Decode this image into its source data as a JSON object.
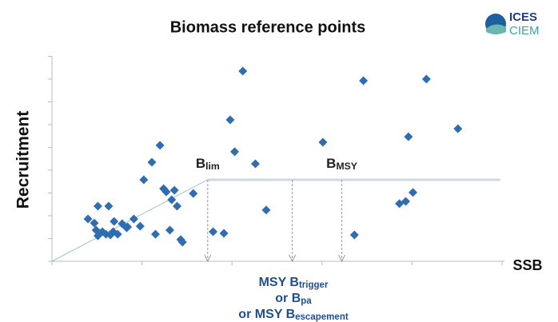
{
  "chart_data": {
    "type": "scatter",
    "title": "Biomass reference points",
    "y_label": "Recruitment",
    "x_label": "SSB",
    "logo": [
      "ICES",
      "CIEM"
    ],
    "color": "#2f6db0",
    "grid": false,
    "xlim": [
      0,
      5
    ],
    "ylim": [
      0,
      9
    ],
    "xticks": [
      0,
      1,
      2,
      3,
      4,
      5
    ],
    "yticks": [
      0,
      1,
      2,
      3,
      4,
      5,
      6,
      7,
      8,
      9
    ],
    "x": [
      0.4,
      0.47,
      0.49,
      0.51,
      0.51,
      0.56,
      0.6,
      0.63,
      0.65,
      0.68,
      0.69,
      0.73,
      0.78,
      0.83,
      0.84,
      0.91,
      0.98,
      1.02,
      1.11,
      1.15,
      1.2,
      1.24,
      1.27,
      1.31,
      1.33,
      1.36,
      1.39,
      1.43,
      1.45,
      1.57,
      1.79,
      1.91,
      1.98,
      2.03,
      2.12,
      2.26,
      2.38,
      3.01,
      3.36,
      3.46,
      3.86,
      3.93,
      3.96,
      4.01,
      4.16,
      4.51
    ],
    "values": [
      1.86,
      1.68,
      1.37,
      2.42,
      1.12,
      1.3,
      1.19,
      2.42,
      1.16,
      1.3,
      1.75,
      1.19,
      1.65,
      1.47,
      1.51,
      1.86,
      1.54,
      3.58,
      4.35,
      1.19,
      5.09,
      3.19,
      3.05,
      1.37,
      2.7,
      3.12,
      2.42,
      0.95,
      0.84,
      2.98,
      1.3,
      1.23,
      6.21,
      4.81,
      8.35,
      4.28,
      2.25,
      5.23,
      1.16,
      7.93,
      2.53,
      2.63,
      5.47,
      3.02,
      8.0,
      5.82
    ],
    "reference": {
      "level": 3.58,
      "end": 4.98,
      "verticals": [
        1.73,
        2.67,
        3.22
      ]
    },
    "annotations": [
      {
        "text": "B",
        "sub": "lim",
        "x": 1.73
      },
      {
        "text": "B",
        "sub": "MSY",
        "x": 3.22
      }
    ],
    "bottom_note": [
      {
        "text": "MSY B",
        "sub": "trigger"
      },
      {
        "text": "or B",
        "sub": "pa"
      },
      {
        "text": "or MSY B",
        "sub": "escapement"
      }
    ]
  }
}
